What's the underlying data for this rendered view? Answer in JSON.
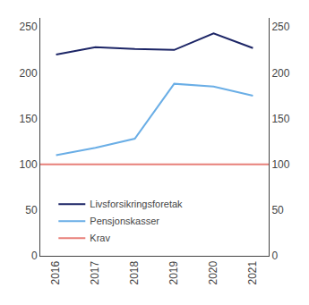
{
  "chart_data": {
    "type": "line",
    "x": [
      2016,
      2017,
      2018,
      2019,
      2020,
      2021
    ],
    "xlim": [
      2015.6,
      2021.4
    ],
    "xticks": [
      2016,
      2017,
      2018,
      2019,
      2020,
      2021
    ],
    "ylim": [
      0,
      260
    ],
    "yticks": [
      0,
      50,
      100,
      150,
      200,
      250
    ],
    "y2lim": [
      0,
      260
    ],
    "y2ticks": [
      0,
      50,
      100,
      150,
      200,
      250
    ],
    "grid": false,
    "legend": "lower left",
    "series": [
      {
        "name": "Livsforsikringsforetak",
        "color": "#1c2566",
        "values": [
          220,
          228,
          226,
          225,
          243,
          227
        ]
      },
      {
        "name": "Pensjonskasser",
        "color": "#6aaee6",
        "values": [
          110,
          118,
          128,
          188,
          185,
          175
        ]
      },
      {
        "name": "Krav",
        "color": "#e8807a",
        "type": "hline",
        "value": 100
      }
    ]
  }
}
